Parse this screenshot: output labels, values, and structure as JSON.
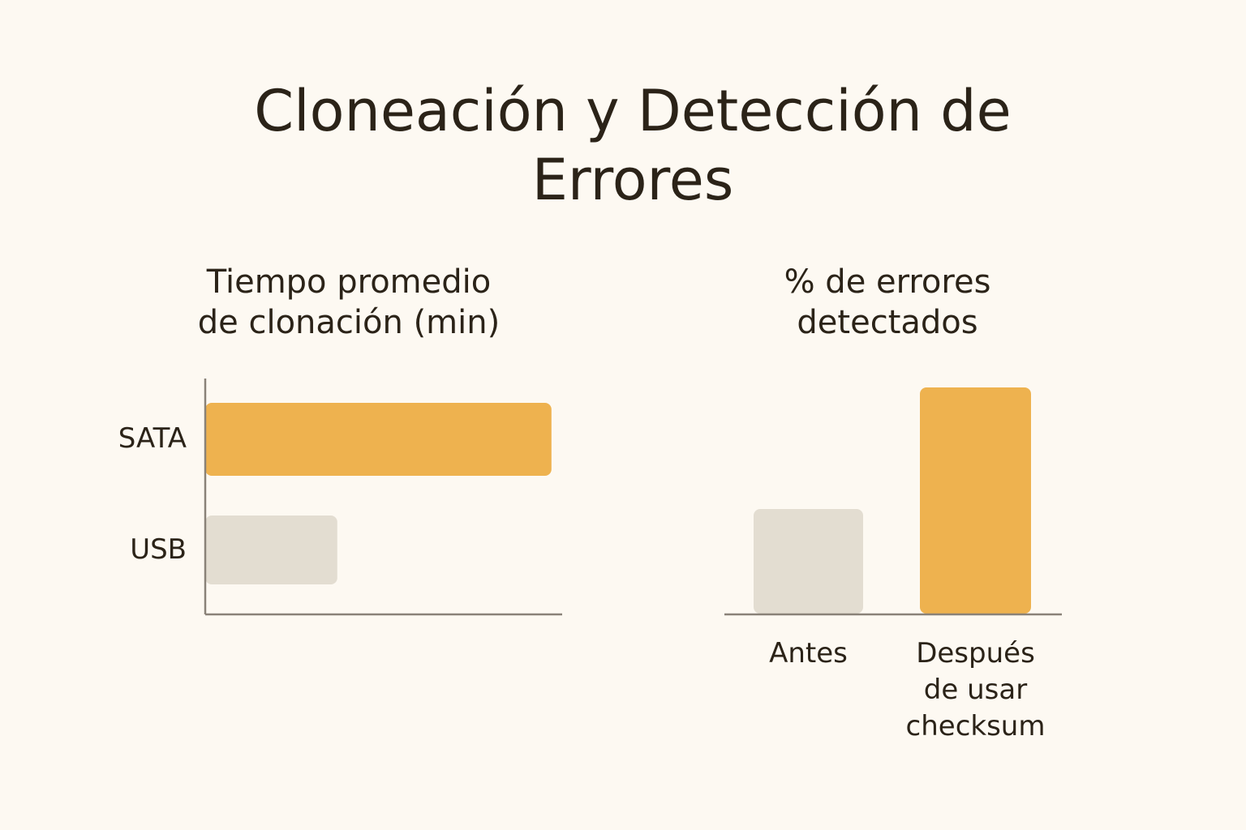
{
  "title": "Cloneación y Detección de Errores",
  "chart_data": [
    {
      "type": "bar",
      "orientation": "horizontal",
      "title": "Tiempo promedio de clonación (min)",
      "categories": [
        "SATA",
        "USB"
      ],
      "values": [
        97,
        37
      ],
      "colors": [
        "#eeb24f",
        "#e3ddd1"
      ],
      "xlim": [
        0,
        100
      ]
    },
    {
      "type": "bar",
      "orientation": "vertical",
      "title": "% de errores detectados",
      "categories": [
        "Antes",
        "Después de usar checksum"
      ],
      "values": [
        43,
        93
      ],
      "colors": [
        "#e3ddd1",
        "#eeb24f"
      ],
      "ylim": [
        0,
        100
      ]
    }
  ]
}
